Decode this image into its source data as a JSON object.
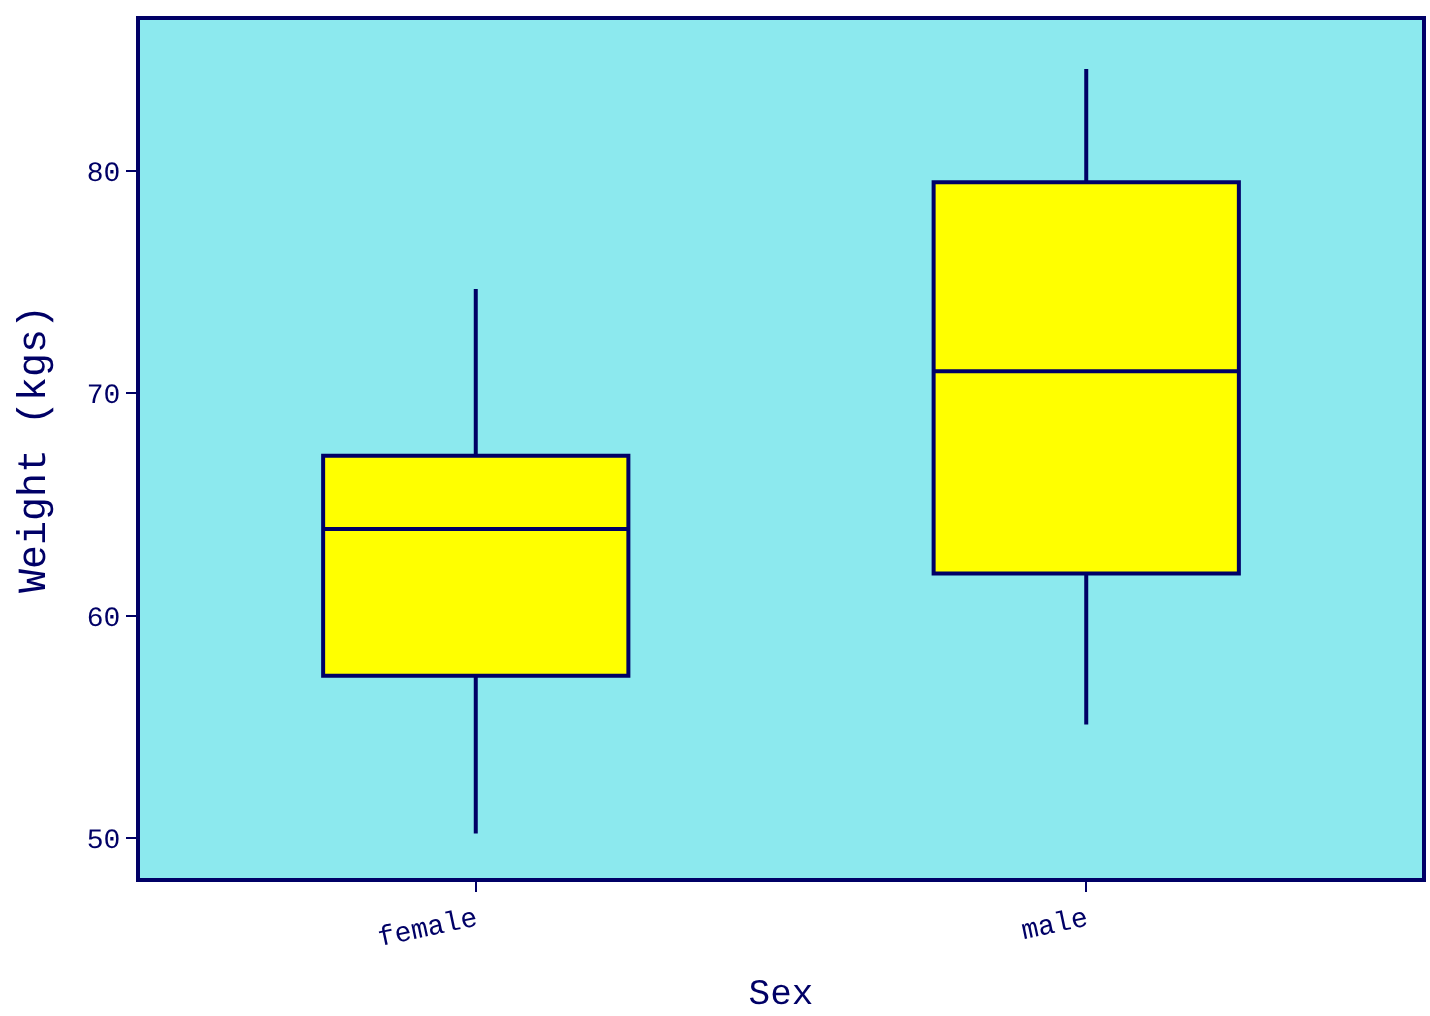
{
  "chart_data": {
    "type": "box",
    "xlabel": "Sex",
    "ylabel": "Weight (kgs)",
    "categories": [
      "female",
      "male"
    ],
    "series": [
      {
        "color": "#ffff00",
        "boxes": [
          {
            "low": 50.2,
            "q1": 57.3,
            "median": 63.9,
            "q3": 67.2,
            "high": 74.7
          },
          {
            "low": 55.1,
            "q1": 61.9,
            "median": 71.0,
            "q3": 79.5,
            "high": 84.6
          }
        ]
      }
    ],
    "ylim": [
      48.2,
      86.8
    ],
    "yticks": [
      50,
      60,
      70,
      80
    ],
    "grid": false
  }
}
